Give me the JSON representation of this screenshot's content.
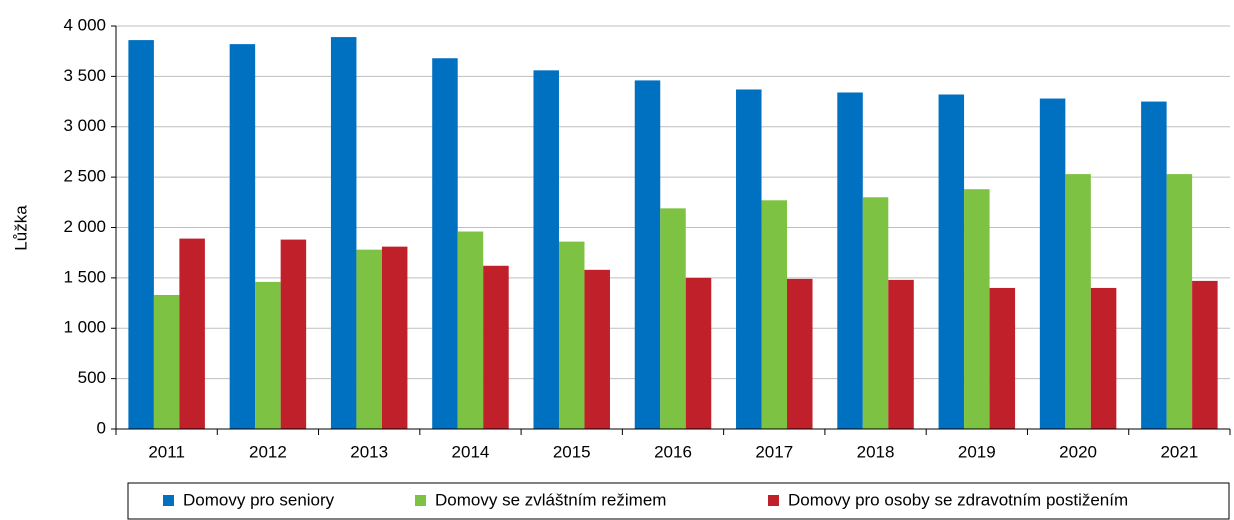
{
  "chart_data": {
    "type": "bar",
    "y_label": "Lůžka",
    "categories": [
      "2011",
      "2012",
      "2013",
      "2014",
      "2015",
      "2016",
      "2017",
      "2018",
      "2019",
      "2020",
      "2021"
    ],
    "series": [
      {
        "name": "Domovy pro seniory",
        "color": "#0070c0",
        "values": [
          3860,
          3820,
          3890,
          3680,
          3560,
          3460,
          3370,
          3340,
          3320,
          3280,
          3250
        ]
      },
      {
        "name": "Domovy se zvláštním režimem",
        "color": "#7dc242",
        "values": [
          1330,
          1460,
          1780,
          1960,
          1860,
          2190,
          2270,
          2300,
          2380,
          2530,
          2530
        ]
      },
      {
        "name": "Domovy pro osoby se zdravotním postižením",
        "color": "#c0202a",
        "values": [
          1890,
          1880,
          1810,
          1620,
          1580,
          1500,
          1490,
          1480,
          1400,
          1400,
          1470
        ]
      }
    ],
    "ylim": [
      0,
      4000
    ],
    "yticks": [
      0,
      500,
      {
        "value": 1000,
        "label": "1 000"
      },
      {
        "value": 1500,
        "label": "1 500"
      },
      {
        "value": 2000,
        "label": "2 000"
      },
      {
        "value": 2500,
        "label": "2 500"
      },
      {
        "value": 3000,
        "label": "3 000"
      },
      {
        "value": 3500,
        "label": "3 500"
      },
      {
        "value": 4000,
        "label": "4 000"
      }
    ],
    "grid": true,
    "legend": "bottom"
  }
}
